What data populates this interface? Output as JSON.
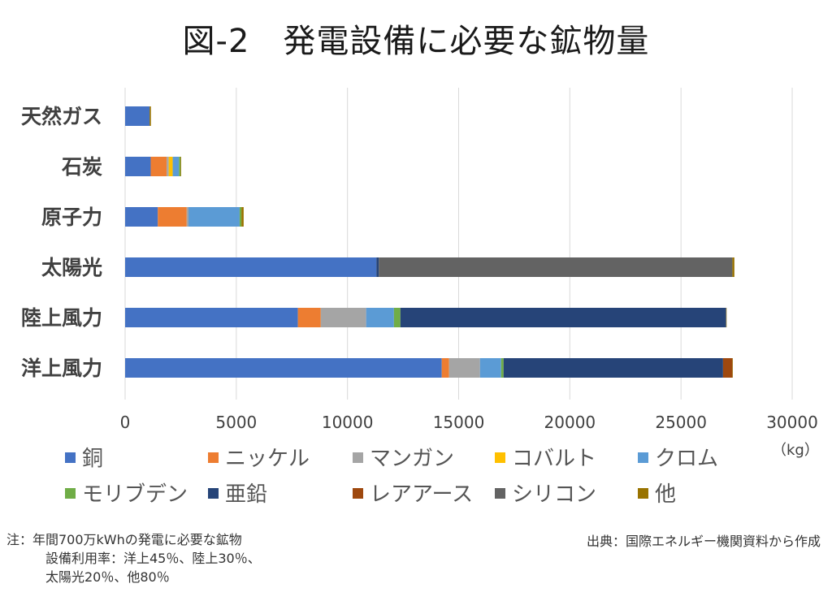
{
  "title": "図-2　発電設備に必要な鉱物量",
  "unit": "（kg）",
  "note": {
    "line1": "注：年間700万kWhの発電に必要な鉱物",
    "line2": "設備利用率：洋上45％、陸上30％、",
    "line3": "太陽光20％、他80％"
  },
  "source": "出典：国際エネルギー機関資料から作成",
  "chart_data": {
    "type": "bar",
    "orientation": "horizontal",
    "stacked": true,
    "title": "図-2　発電設備に必要な鉱物量",
    "xlabel": "",
    "ylabel": "",
    "unit": "（kg）",
    "xlim": [
      0,
      30000
    ],
    "xticks": [
      0,
      5000,
      10000,
      15000,
      20000,
      25000,
      30000
    ],
    "grid": true,
    "legend_position": "bottom",
    "categories": [
      "天然ガス",
      "石炭",
      "原子力",
      "太陽光",
      "陸上風力",
      "洋上風力"
    ],
    "series": [
      {
        "name": "銅",
        "color": "#4472C4",
        "values": [
          1100,
          1150,
          1470,
          11300,
          7770,
          14240
        ]
      },
      {
        "name": "ニッケル",
        "color": "#ED7D31",
        "values": [
          0,
          720,
          1300,
          0,
          1030,
          330
        ]
      },
      {
        "name": "マンガン",
        "color": "#A5A5A5",
        "values": [
          0,
          90,
          80,
          0,
          2040,
          1390
        ]
      },
      {
        "name": "コバルト",
        "color": "#FFC000",
        "values": [
          0,
          180,
          0,
          0,
          0,
          0
        ]
      },
      {
        "name": "クロム",
        "color": "#5B9BD5",
        "values": [
          0,
          280,
          2300,
          0,
          1250,
          950
        ]
      },
      {
        "name": "モリブデン",
        "color": "#70AD47",
        "values": [
          0,
          70,
          80,
          0,
          290,
          110
        ]
      },
      {
        "name": "亜鉛",
        "color": "#264478",
        "values": [
          0,
          0,
          0,
          110,
          14650,
          9870
        ]
      },
      {
        "name": "レアアース",
        "color": "#9E480E",
        "values": [
          0,
          0,
          0,
          0,
          0,
          420
        ]
      },
      {
        "name": "シリコン",
        "color": "#636363",
        "values": [
          0,
          0,
          0,
          15900,
          0,
          0
        ]
      },
      {
        "name": "他",
        "color": "#997300",
        "values": [
          60,
          30,
          100,
          90,
          20,
          20
        ]
      }
    ]
  }
}
